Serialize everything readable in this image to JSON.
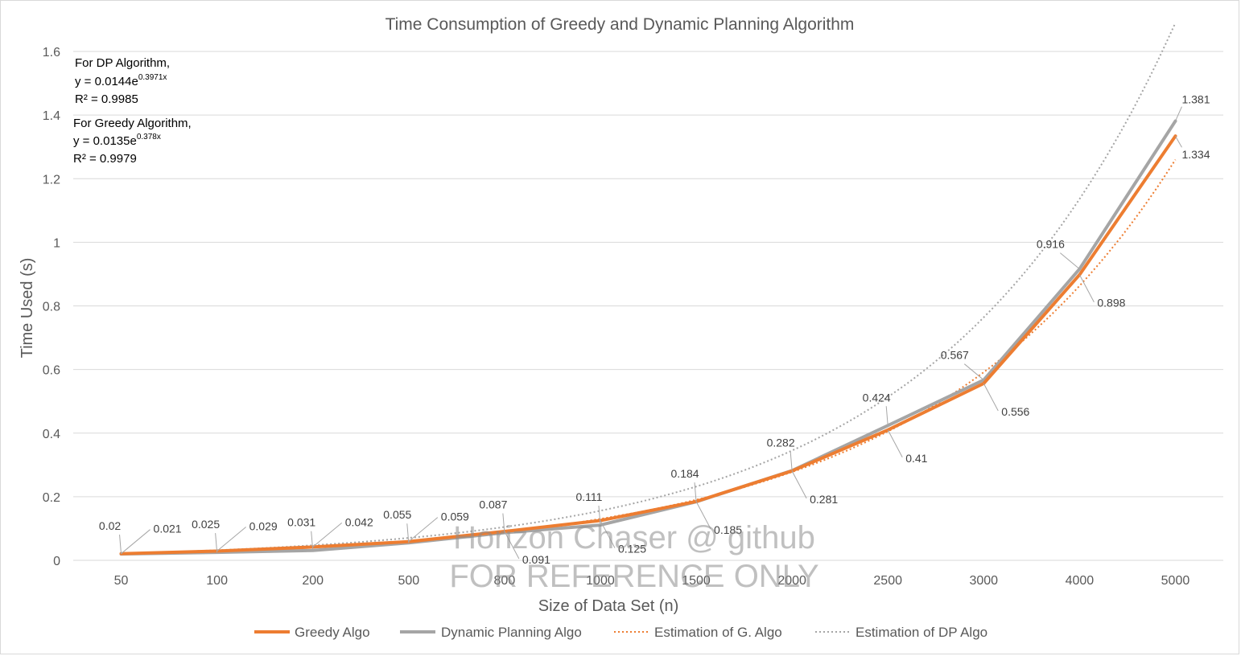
{
  "chart_data": {
    "type": "line",
    "title": "Time Consumption of Greedy and Dynamic Planning Algorithm",
    "xlabel": "Size of Data Set (n)",
    "ylabel": "Time Used (s)",
    "categories": [
      "50",
      "100",
      "200",
      "500",
      "800",
      "1000",
      "1500",
      "2000",
      "2500",
      "3000",
      "4000",
      "5000"
    ],
    "ylim": [
      0,
      1.6
    ],
    "yticks": [
      0,
      0.2,
      0.4,
      0.6,
      0.8,
      1,
      1.2,
      1.4,
      1.6
    ],
    "ytick_labels": [
      "0",
      "0.2",
      "0.4",
      "0.6",
      "0.8",
      "1",
      "1.2",
      "1.4",
      "1.6"
    ],
    "grid": "horizontal",
    "legend": "bottom",
    "series": [
      {
        "name": "Greedy Algo",
        "style": "solid",
        "color": "#ed7d31",
        "values": [
          0.021,
          0.029,
          0.042,
          0.059,
          0.091,
          0.125,
          0.185,
          0.281,
          0.41,
          0.556,
          0.898,
          1.334
        ]
      },
      {
        "name": "Dynamic Planning Algo",
        "style": "solid",
        "color": "#a5a5a5",
        "values": [
          0.02,
          0.025,
          0.031,
          0.055,
          0.087,
          0.111,
          0.184,
          0.282,
          0.424,
          0.567,
          0.916,
          1.381
        ]
      },
      {
        "name": "Estimation of G. Algo",
        "style": "dotted",
        "color": "#ed7d31",
        "trendline": "exponential",
        "a": 0.0135,
        "b": 0.378
      },
      {
        "name": "Estimation of DP Algo",
        "style": "dotted",
        "color": "#a5a5a5",
        "trendline": "exponential",
        "a": 0.0144,
        "b": 0.3971
      }
    ],
    "data_labels": [
      {
        "text": "0.021",
        "series": 0,
        "index": 0
      },
      {
        "text": "0.029",
        "series": 0,
        "index": 1
      },
      {
        "text": "0.042",
        "series": 0,
        "index": 2
      },
      {
        "text": "0.059",
        "series": 0,
        "index": 3
      },
      {
        "text": "0.091",
        "series": 0,
        "index": 4
      },
      {
        "text": "0.125",
        "series": 0,
        "index": 5
      },
      {
        "text": "0.185",
        "series": 0,
        "index": 6
      },
      {
        "text": "0.281",
        "series": 0,
        "index": 7
      },
      {
        "text": "0.41",
        "series": 0,
        "index": 8
      },
      {
        "text": "0.556",
        "series": 0,
        "index": 9
      },
      {
        "text": "0.898",
        "series": 0,
        "index": 10
      },
      {
        "text": "1.334",
        "series": 0,
        "index": 11
      },
      {
        "text": "0.02",
        "series": 1,
        "index": 0
      },
      {
        "text": "0.025",
        "series": 1,
        "index": 1
      },
      {
        "text": "0.031",
        "series": 1,
        "index": 2
      },
      {
        "text": "0.055",
        "series": 1,
        "index": 3
      },
      {
        "text": "0.087",
        "series": 1,
        "index": 4
      },
      {
        "text": "0.111",
        "series": 1,
        "index": 5
      },
      {
        "text": "0.184",
        "series": 1,
        "index": 6
      },
      {
        "text": "0.282",
        "series": 1,
        "index": 7
      },
      {
        "text": "0.424",
        "series": 1,
        "index": 8
      },
      {
        "text": "0.567",
        "series": 1,
        "index": 9
      },
      {
        "text": "0.916",
        "series": 1,
        "index": 10
      },
      {
        "text": "1.381",
        "series": 1,
        "index": 11
      }
    ],
    "annotations": {
      "dp_heading": "For DP Algorithm,",
      "dp_eq_base": "y = 0.0144e",
      "dp_eq_exp": "0.3971x",
      "dp_r2": "R² = 0.9985",
      "g_heading": "For Greedy Algorithm,",
      "g_eq_base": "y = 0.0135e",
      "g_eq_exp": "0.378x",
      "g_r2": "R² = 0.9979"
    },
    "watermark": {
      "line1": "Horizon Chaser @ github",
      "line2": "FOR REFERENCE ONLY"
    }
  }
}
